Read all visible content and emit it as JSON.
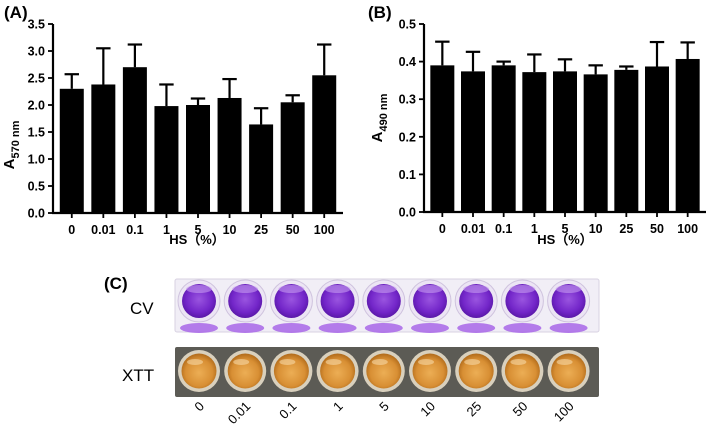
{
  "figure": {
    "panel_labels": [
      "(A)",
      "(B)",
      "(C)"
    ],
    "strip_row_labels": [
      "CV",
      "XTT"
    ],
    "strip_well_labels": [
      "0",
      "0.01",
      "0.1",
      "1",
      "5",
      "10",
      "25",
      "50",
      "100"
    ],
    "colors": {
      "bar": "#000000",
      "cv_plate_bg": "#f1eef6",
      "cv_well": "#7a2bd0",
      "cv_well_light": "#b07ae6",
      "xtt_plate_bg": "#5a5a54",
      "xtt_well": "#de9a40",
      "xtt_well_dark": "#c0761f"
    }
  },
  "chart_data": [
    {
      "type": "bar",
      "panel": "(A)",
      "title": "",
      "categories": [
        "0",
        "0.01",
        "0.1",
        "1",
        "5",
        "10",
        "25",
        "50",
        "100"
      ],
      "series": [
        {
          "name": "A570 nm",
          "values": [
            2.3,
            2.38,
            2.7,
            1.98,
            2.0,
            2.13,
            1.64,
            2.05,
            2.55
          ],
          "error_up": [
            0.27,
            0.67,
            0.42,
            0.4,
            0.12,
            0.35,
            0.3,
            0.13,
            0.57
          ]
        }
      ],
      "xlabel": "HS（%）",
      "ylabel_main": "A",
      "ylabel_sub": "570 nm",
      "ylim": [
        0,
        3.5
      ],
      "yticks": [
        "0.0",
        "0.5",
        "1.0",
        "1.5",
        "2.0",
        "2.5",
        "3.0",
        "3.5"
      ],
      "grid": false
    },
    {
      "type": "bar",
      "panel": "(B)",
      "title": "",
      "categories": [
        "0",
        "0.01",
        "0.1",
        "1",
        "5",
        "10",
        "25",
        "50",
        "100"
      ],
      "series": [
        {
          "name": "A490 nm",
          "values": [
            0.39,
            0.374,
            0.39,
            0.372,
            0.374,
            0.366,
            0.378,
            0.387,
            0.407
          ],
          "error_up": [
            0.063,
            0.052,
            0.01,
            0.047,
            0.032,
            0.024,
            0.009,
            0.065,
            0.044
          ]
        }
      ],
      "xlabel": "HS（%）",
      "ylabel_main": "A",
      "ylabel_sub": "490 nm",
      "ylim": [
        0,
        0.5
      ],
      "yticks": [
        "0.0",
        "0.1",
        "0.2",
        "0.3",
        "0.4",
        "0.5"
      ],
      "grid": false
    }
  ]
}
